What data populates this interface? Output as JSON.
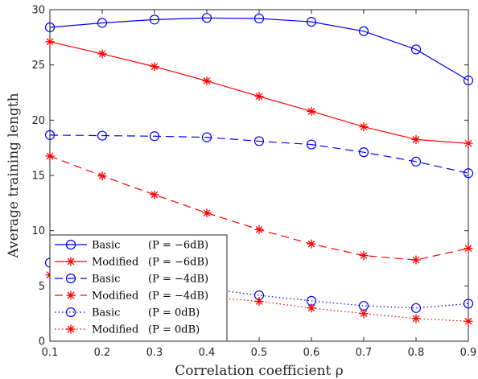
{
  "chart_data": {
    "type": "line",
    "title": "",
    "xlabel": "Correlation coefficient ρ",
    "ylabel": "Average training length",
    "xlim": [
      0.1,
      0.9
    ],
    "ylim": [
      0,
      30
    ],
    "xticks": [
      0.1,
      0.2,
      0.3,
      0.4,
      0.5,
      0.6,
      0.7,
      0.8,
      0.9
    ],
    "xtick_labels": [
      "0.1",
      "0.2",
      "0.3",
      "0.4",
      "0.5",
      "0.6",
      "0.7",
      "0.8",
      "0.9"
    ],
    "yticks": [
      0,
      5,
      10,
      15,
      20,
      25,
      30
    ],
    "ytick_labels": [
      "0",
      "5",
      "10",
      "15",
      "20",
      "25",
      "30"
    ],
    "grid": false,
    "legend_position": "bottom-left",
    "x": [
      0.1,
      0.2,
      0.3,
      0.4,
      0.5,
      0.6,
      0.7,
      0.8,
      0.9
    ],
    "series": [
      {
        "name": "Basic",
        "condition": "(P = −6dB)",
        "color": "#0000ff",
        "dash": "solid",
        "marker": "circle",
        "values": [
          28.4,
          28.8,
          29.1,
          29.25,
          29.2,
          28.9,
          28.05,
          26.4,
          23.6
        ]
      },
      {
        "name": "Modified",
        "condition": "(P = −6dB)",
        "color": "#ff0000",
        "dash": "solid",
        "marker": "asterisk",
        "values": [
          27.1,
          26.0,
          24.85,
          23.55,
          22.15,
          20.8,
          19.4,
          18.25,
          17.9
        ]
      },
      {
        "name": "Basic",
        "condition": "(P = −4dB)",
        "color": "#0000ff",
        "dash": "dashed",
        "marker": "circle",
        "values": [
          18.65,
          18.6,
          18.55,
          18.45,
          18.1,
          17.8,
          17.1,
          16.25,
          15.2
        ]
      },
      {
        "name": "Modified",
        "condition": "(P = −4dB)",
        "color": "#ff0000",
        "dash": "dashed",
        "marker": "asterisk",
        "values": [
          16.75,
          14.95,
          13.25,
          11.6,
          10.1,
          8.8,
          7.75,
          7.35,
          8.4
        ]
      },
      {
        "name": "Basic",
        "condition": "(P = 0dB)",
        "color": "#0000ff",
        "dash": "dotted",
        "marker": "circle",
        "values": [
          7.1,
          6.3,
          5.5,
          4.75,
          4.15,
          3.65,
          3.2,
          3.0,
          3.4
        ]
      },
      {
        "name": "Modified",
        "condition": "(P = 0dB)",
        "color": "#ff0000",
        "dash": "dotted",
        "marker": "asterisk",
        "values": [
          6.0,
          5.2,
          4.5,
          4.0,
          3.6,
          3.0,
          2.5,
          2.05,
          1.8
        ]
      }
    ]
  }
}
